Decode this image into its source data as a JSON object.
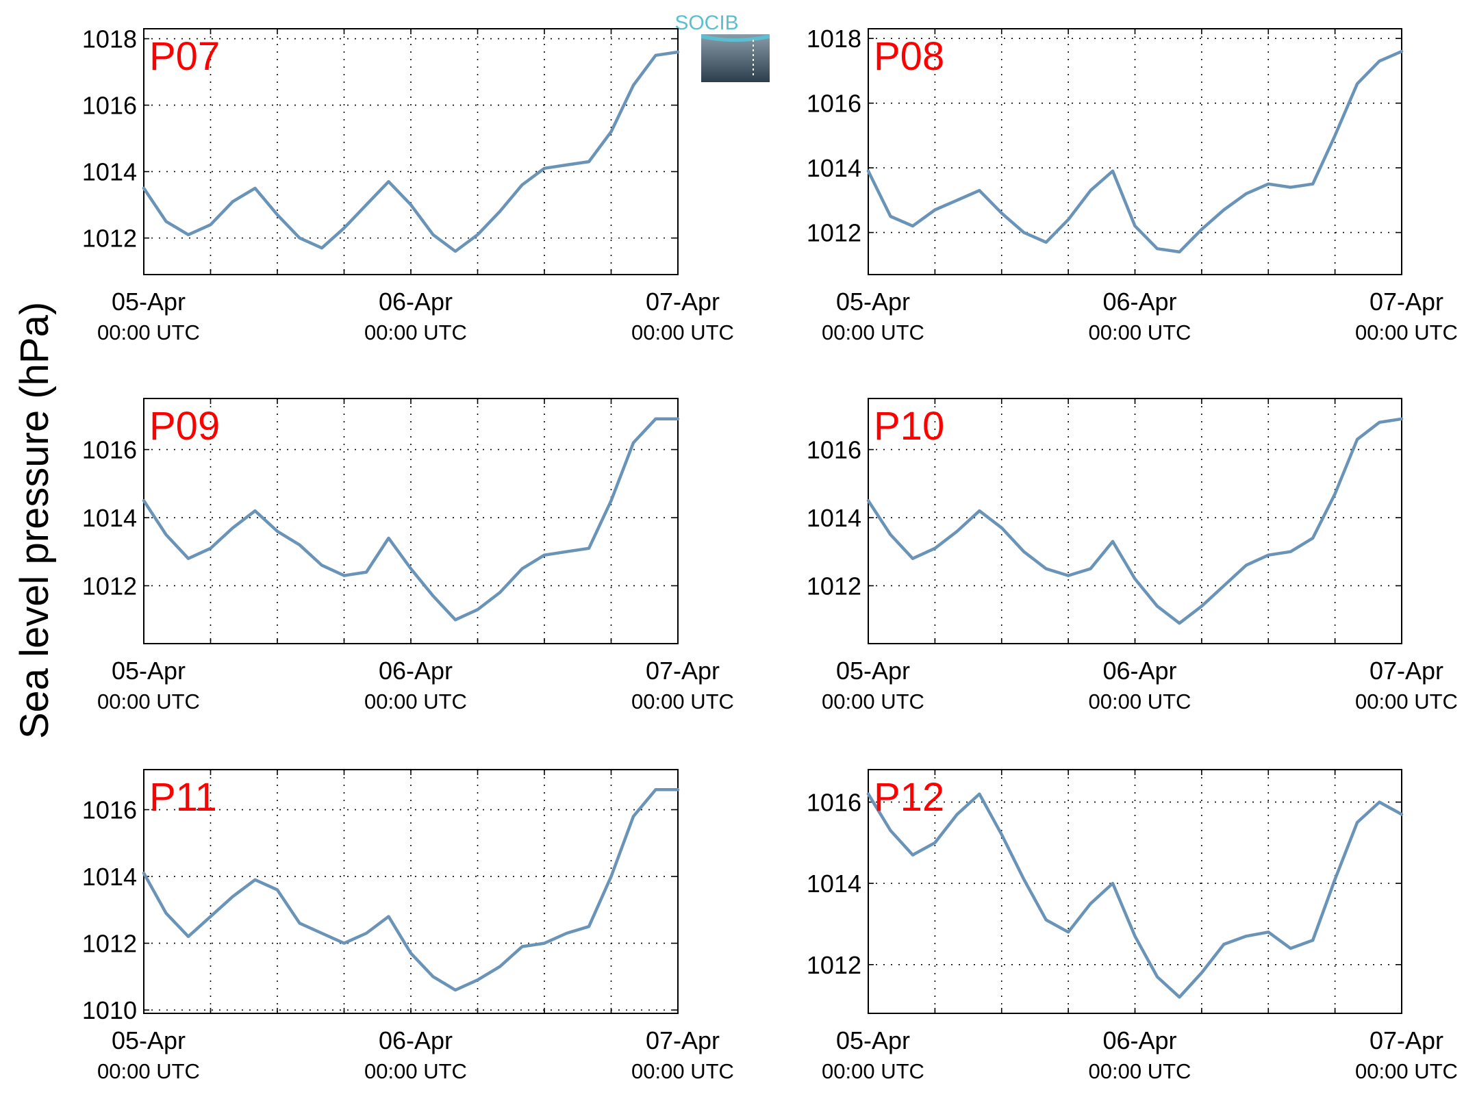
{
  "figure": {
    "ylabel": "Sea level pressure (hPa)",
    "logo_text": "SOCIB",
    "label_color": "#ff0000",
    "line_color": "#6a93b8",
    "logo_color": "#5bbfd2"
  },
  "chart_data": [
    {
      "type": "line",
      "panel_label": "P07",
      "xticks": [
        {
          "label": "05-Apr",
          "sublabel": "00:00 UTC"
        },
        {
          "label": "06-Apr",
          "sublabel": "00:00 UTC"
        },
        {
          "label": "07-Apr",
          "sublabel": "00:00 UTC"
        }
      ],
      "xlim": [
        "2024-04-05T00:00",
        "2024-04-07T00:00"
      ],
      "ylim": [
        1010.9,
        1018.3
      ],
      "yticks": [
        1012,
        1014,
        1016,
        1018
      ],
      "grid": true,
      "x": [
        "2024-04-05T00:00",
        "2024-04-05T02:00",
        "2024-04-05T04:00",
        "2024-04-05T06:00",
        "2024-04-05T08:00",
        "2024-04-05T10:00",
        "2024-04-05T12:00",
        "2024-04-05T14:00",
        "2024-04-05T16:00",
        "2024-04-05T18:00",
        "2024-04-05T20:00",
        "2024-04-05T22:00",
        "2024-04-06T00:00",
        "2024-04-06T02:00",
        "2024-04-06T04:00",
        "2024-04-06T06:00",
        "2024-04-06T08:00",
        "2024-04-06T10:00",
        "2024-04-06T12:00",
        "2024-04-06T14:00",
        "2024-04-06T16:00",
        "2024-04-06T18:00",
        "2024-04-06T20:00",
        "2024-04-06T22:00",
        "2024-04-07T00:00"
      ],
      "y": [
        1013.5,
        1012.5,
        1012.1,
        1012.4,
        1013.1,
        1013.5,
        1012.7,
        1012.0,
        1011.7,
        1012.3,
        1013.0,
        1013.7,
        1013.0,
        1012.1,
        1011.6,
        1012.1,
        1012.8,
        1013.6,
        1014.1,
        1014.2,
        1014.3,
        1015.2,
        1016.6,
        1017.5,
        1017.6
      ]
    },
    {
      "type": "line",
      "panel_label": "P08",
      "xticks": [
        {
          "label": "05-Apr",
          "sublabel": "00:00 UTC"
        },
        {
          "label": "06-Apr",
          "sublabel": "00:00 UTC"
        },
        {
          "label": "07-Apr",
          "sublabel": "00:00 UTC"
        }
      ],
      "xlim": [
        "2024-04-05T00:00",
        "2024-04-07T00:00"
      ],
      "ylim": [
        1010.7,
        1018.3
      ],
      "yticks": [
        1012,
        1014,
        1016,
        1018
      ],
      "grid": true,
      "x": [
        "2024-04-05T00:00",
        "2024-04-05T02:00",
        "2024-04-05T04:00",
        "2024-04-05T06:00",
        "2024-04-05T08:00",
        "2024-04-05T10:00",
        "2024-04-05T12:00",
        "2024-04-05T14:00",
        "2024-04-05T16:00",
        "2024-04-05T18:00",
        "2024-04-05T20:00",
        "2024-04-05T22:00",
        "2024-04-06T00:00",
        "2024-04-06T02:00",
        "2024-04-06T04:00",
        "2024-04-06T06:00",
        "2024-04-06T08:00",
        "2024-04-06T10:00",
        "2024-04-06T12:00",
        "2024-04-06T14:00",
        "2024-04-06T16:00",
        "2024-04-06T18:00",
        "2024-04-06T20:00",
        "2024-04-06T22:00",
        "2024-04-07T00:00"
      ],
      "y": [
        1013.9,
        1012.5,
        1012.2,
        1012.7,
        1013.0,
        1013.3,
        1012.6,
        1012.0,
        1011.7,
        1012.4,
        1013.3,
        1013.9,
        1012.2,
        1011.5,
        1011.4,
        1012.1,
        1012.7,
        1013.2,
        1013.5,
        1013.4,
        1013.5,
        1015.0,
        1016.6,
        1017.3,
        1017.6
      ]
    },
    {
      "type": "line",
      "panel_label": "P09",
      "xticks": [
        {
          "label": "05-Apr",
          "sublabel": "00:00 UTC"
        },
        {
          "label": "06-Apr",
          "sublabel": "00:00 UTC"
        },
        {
          "label": "07-Apr",
          "sublabel": "00:00 UTC"
        }
      ],
      "xlim": [
        "2024-04-05T00:00",
        "2024-04-07T00:00"
      ],
      "ylim": [
        1010.3,
        1017.5
      ],
      "yticks": [
        1012,
        1014,
        1016
      ],
      "grid": true,
      "x": [
        "2024-04-05T00:00",
        "2024-04-05T02:00",
        "2024-04-05T04:00",
        "2024-04-05T06:00",
        "2024-04-05T08:00",
        "2024-04-05T10:00",
        "2024-04-05T12:00",
        "2024-04-05T14:00",
        "2024-04-05T16:00",
        "2024-04-05T18:00",
        "2024-04-05T20:00",
        "2024-04-05T22:00",
        "2024-04-06T00:00",
        "2024-04-06T02:00",
        "2024-04-06T04:00",
        "2024-04-06T06:00",
        "2024-04-06T08:00",
        "2024-04-06T10:00",
        "2024-04-06T12:00",
        "2024-04-06T14:00",
        "2024-04-06T16:00",
        "2024-04-06T18:00",
        "2024-04-06T20:00",
        "2024-04-06T22:00",
        "2024-04-07T00:00"
      ],
      "y": [
        1014.5,
        1013.5,
        1012.8,
        1013.1,
        1013.7,
        1014.2,
        1013.6,
        1013.2,
        1012.6,
        1012.3,
        1012.4,
        1013.4,
        1012.5,
        1011.7,
        1011.0,
        1011.3,
        1011.8,
        1012.5,
        1012.9,
        1013.0,
        1013.1,
        1014.5,
        1016.2,
        1016.9,
        1016.9
      ]
    },
    {
      "type": "line",
      "panel_label": "P10",
      "xticks": [
        {
          "label": "05-Apr",
          "sublabel": "00:00 UTC"
        },
        {
          "label": "06-Apr",
          "sublabel": "00:00 UTC"
        },
        {
          "label": "07-Apr",
          "sublabel": "00:00 UTC"
        }
      ],
      "xlim": [
        "2024-04-05T00:00",
        "2024-04-07T00:00"
      ],
      "ylim": [
        1010.3,
        1017.5
      ],
      "yticks": [
        1012,
        1014,
        1016
      ],
      "grid": true,
      "x": [
        "2024-04-05T00:00",
        "2024-04-05T02:00",
        "2024-04-05T04:00",
        "2024-04-05T06:00",
        "2024-04-05T08:00",
        "2024-04-05T10:00",
        "2024-04-05T12:00",
        "2024-04-05T14:00",
        "2024-04-05T16:00",
        "2024-04-05T18:00",
        "2024-04-05T20:00",
        "2024-04-05T22:00",
        "2024-04-06T00:00",
        "2024-04-06T02:00",
        "2024-04-06T04:00",
        "2024-04-06T06:00",
        "2024-04-06T08:00",
        "2024-04-06T10:00",
        "2024-04-06T12:00",
        "2024-04-06T14:00",
        "2024-04-06T16:00",
        "2024-04-06T18:00",
        "2024-04-06T20:00",
        "2024-04-06T22:00",
        "2024-04-07T00:00"
      ],
      "y": [
        1014.5,
        1013.5,
        1012.8,
        1013.1,
        1013.6,
        1014.2,
        1013.7,
        1013.0,
        1012.5,
        1012.3,
        1012.5,
        1013.3,
        1012.2,
        1011.4,
        1010.9,
        1011.4,
        1012.0,
        1012.6,
        1012.9,
        1013.0,
        1013.4,
        1014.7,
        1016.3,
        1016.8,
        1016.9
      ]
    },
    {
      "type": "line",
      "panel_label": "P11",
      "xticks": [
        {
          "label": "05-Apr",
          "sublabel": "00:00 UTC"
        },
        {
          "label": "06-Apr",
          "sublabel": "00:00 UTC"
        },
        {
          "label": "07-Apr",
          "sublabel": "00:00 UTC"
        }
      ],
      "xlim": [
        "2024-04-05T00:00",
        "2024-04-07T00:00"
      ],
      "ylim": [
        1009.9,
        1017.2
      ],
      "yticks": [
        1010,
        1012,
        1014,
        1016
      ],
      "grid": true,
      "x": [
        "2024-04-05T00:00",
        "2024-04-05T02:00",
        "2024-04-05T04:00",
        "2024-04-05T06:00",
        "2024-04-05T08:00",
        "2024-04-05T10:00",
        "2024-04-05T12:00",
        "2024-04-05T14:00",
        "2024-04-05T16:00",
        "2024-04-05T18:00",
        "2024-04-05T20:00",
        "2024-04-05T22:00",
        "2024-04-06T00:00",
        "2024-04-06T02:00",
        "2024-04-06T04:00",
        "2024-04-06T06:00",
        "2024-04-06T08:00",
        "2024-04-06T10:00",
        "2024-04-06T12:00",
        "2024-04-06T14:00",
        "2024-04-06T16:00",
        "2024-04-06T18:00",
        "2024-04-06T20:00",
        "2024-04-06T22:00",
        "2024-04-07T00:00"
      ],
      "y": [
        1014.1,
        1012.9,
        1012.2,
        1012.8,
        1013.4,
        1013.9,
        1013.6,
        1012.6,
        1012.3,
        1012.0,
        1012.3,
        1012.8,
        1011.7,
        1011.0,
        1010.6,
        1010.9,
        1011.3,
        1011.9,
        1012.0,
        1012.3,
        1012.5,
        1014.0,
        1015.8,
        1016.6,
        1016.6
      ]
    },
    {
      "type": "line",
      "panel_label": "P12",
      "xticks": [
        {
          "label": "05-Apr",
          "sublabel": "00:00 UTC"
        },
        {
          "label": "06-Apr",
          "sublabel": "00:00 UTC"
        },
        {
          "label": "07-Apr",
          "sublabel": "00:00 UTC"
        }
      ],
      "xlim": [
        "2024-04-05T00:00",
        "2024-04-07T00:00"
      ],
      "ylim": [
        1010.8,
        1016.8
      ],
      "yticks": [
        1012,
        1014,
        1016
      ],
      "grid": true,
      "x": [
        "2024-04-05T00:00",
        "2024-04-05T02:00",
        "2024-04-05T04:00",
        "2024-04-05T06:00",
        "2024-04-05T08:00",
        "2024-04-05T10:00",
        "2024-04-05T12:00",
        "2024-04-05T14:00",
        "2024-04-05T16:00",
        "2024-04-05T18:00",
        "2024-04-05T20:00",
        "2024-04-05T22:00",
        "2024-04-06T00:00",
        "2024-04-06T02:00",
        "2024-04-06T04:00",
        "2024-04-06T06:00",
        "2024-04-06T08:00",
        "2024-04-06T10:00",
        "2024-04-06T12:00",
        "2024-04-06T14:00",
        "2024-04-06T16:00",
        "2024-04-06T18:00",
        "2024-04-06T20:00",
        "2024-04-06T22:00",
        "2024-04-07T00:00"
      ],
      "y": [
        1016.2,
        1015.3,
        1014.7,
        1015.0,
        1015.7,
        1016.2,
        1015.2,
        1014.1,
        1013.1,
        1012.8,
        1013.5,
        1014.0,
        1012.7,
        1011.7,
        1011.2,
        1011.8,
        1012.5,
        1012.7,
        1012.8,
        1012.4,
        1012.6,
        1014.1,
        1015.5,
        1016.0,
        1015.7
      ]
    }
  ]
}
